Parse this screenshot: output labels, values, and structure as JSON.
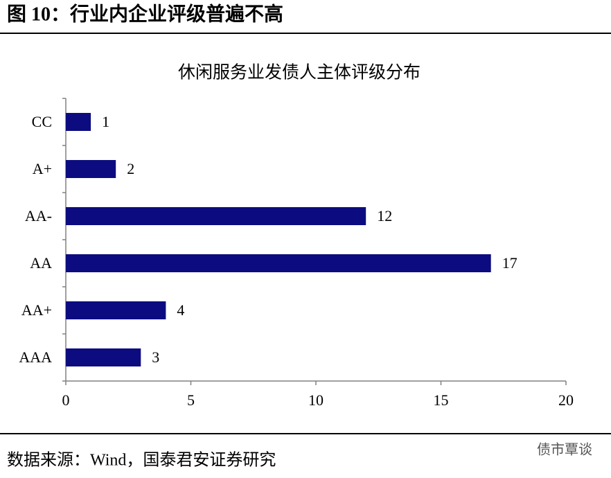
{
  "header_title": "图 10：行业内企业评级普遍不高",
  "source": "数据来源：Wind，国泰君安证券研究",
  "watermark": "债市覃谈",
  "chart_data": {
    "type": "bar",
    "orientation": "horizontal",
    "title": "休闲服务业发债人主体评级分布",
    "categories": [
      "CC",
      "A+",
      "AA-",
      "AA",
      "AA+",
      "AAA"
    ],
    "values": [
      1,
      2,
      12,
      17,
      4,
      3
    ],
    "color": "#0c0c80",
    "xlim": [
      0,
      20
    ],
    "xticks": [
      0,
      5,
      10,
      15,
      20
    ],
    "grid": false
  }
}
